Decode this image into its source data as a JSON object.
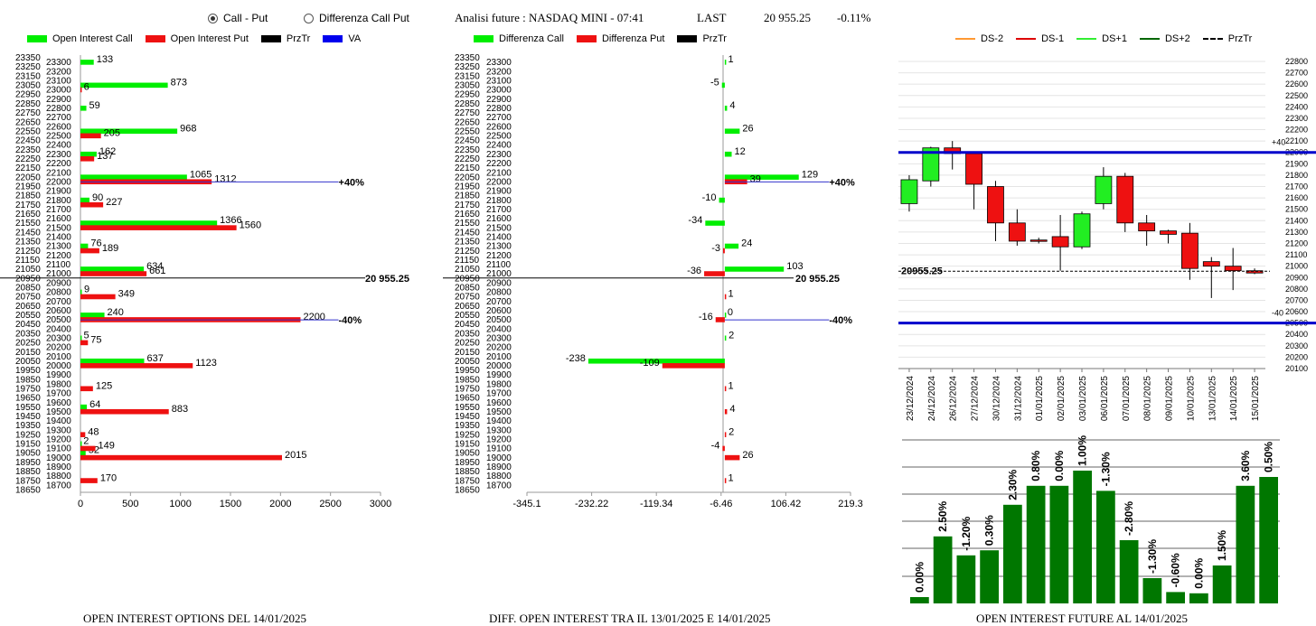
{
  "controls": {
    "radio_call_put": "Call - Put",
    "radio_diff": "Differenza Call Put",
    "title": "Analisi future : NASDAQ MINI - 07:41",
    "last_label": "LAST",
    "last_value": "20 955.25",
    "change": "-0.11%"
  },
  "legend_left": [
    {
      "label": "Open Interest Call",
      "color": "#00ee00"
    },
    {
      "label": "Open Interest Put",
      "color": "#ee1111"
    },
    {
      "label": "PrzTr",
      "color": "#000000"
    },
    {
      "label": "VA",
      "color": "#0000ee"
    }
  ],
  "legend_mid": [
    {
      "label": "Differenza Call",
      "color": "#00ee00"
    },
    {
      "label": "Differenza Put",
      "color": "#ee1111"
    },
    {
      "label": "PrzTr",
      "color": "#000000"
    }
  ],
  "legend_right": [
    {
      "label": "DS-2",
      "color": "#ff9933",
      "dash": false
    },
    {
      "label": "DS-1",
      "color": "#dd0000",
      "dash": false
    },
    {
      "label": "DS+1",
      "color": "#33ee33",
      "dash": false
    },
    {
      "label": "DS+2",
      "color": "#006600",
      "dash": false
    },
    {
      "label": "PrzTr",
      "color": "#000000",
      "dash": true
    }
  ],
  "captions": {
    "left": "OPEN INTEREST OPTIONS DEL 14/01/2025",
    "mid": "DIFF. OPEN INTEREST TRA IL 13/01/2025 E 14/01/2025",
    "right": "OPEN INTEREST FUTURE AL 14/01/2025"
  },
  "chart_data": [
    {
      "type": "bar",
      "orientation": "horizontal",
      "y_strikes_range": [
        18650,
        23350
      ],
      "y_strike_step": 50,
      "x_ticks": [
        0,
        500,
        1000,
        1500,
        2000,
        2500,
        3000
      ],
      "xlim": [
        0,
        3000
      ],
      "price_line": {
        "value": 20955.25,
        "label": "20 955.25"
      },
      "va_levels": [
        {
          "strike": 22000,
          "label": "+40%",
          "x": 2580
        },
        {
          "strike": 20500,
          "label": "-40%",
          "x": 2580
        }
      ],
      "series": [
        {
          "name": "Open Interest Call",
          "color": "#00ee00",
          "values": [
            {
              "strike": 23300,
              "v": 133
            },
            {
              "strike": 23050,
              "v": 873
            },
            {
              "strike": 22800,
              "v": 59
            },
            {
              "strike": 22550,
              "v": 968
            },
            {
              "strike": 22300,
              "v": 162
            },
            {
              "strike": 22050,
              "v": 1065
            },
            {
              "strike": 21800,
              "v": 90
            },
            {
              "strike": 21550,
              "v": 1366
            },
            {
              "strike": 21300,
              "v": 76
            },
            {
              "strike": 21050,
              "v": 634
            },
            {
              "strike": 20800,
              "v": 9
            },
            {
              "strike": 20550,
              "v": 240
            },
            {
              "strike": 20300,
              "v": 5
            },
            {
              "strike": 20050,
              "v": 637
            },
            {
              "strike": 19550,
              "v": 64
            },
            {
              "strike": 19150,
              "v": 2
            },
            {
              "strike": 19050,
              "v": 52
            }
          ]
        },
        {
          "name": "Open Interest Put",
          "color": "#ee1111",
          "values": [
            {
              "strike": 23000,
              "v": 6
            },
            {
              "strike": 22500,
              "v": 205
            },
            {
              "strike": 22250,
              "v": 137
            },
            {
              "strike": 22000,
              "v": 1312
            },
            {
              "strike": 21750,
              "v": 227
            },
            {
              "strike": 21500,
              "v": 1560
            },
            {
              "strike": 21250,
              "v": 189
            },
            {
              "strike": 21000,
              "v": 661
            },
            {
              "strike": 20750,
              "v": 349
            },
            {
              "strike": 20500,
              "v": 2200
            },
            {
              "strike": 20250,
              "v": 75
            },
            {
              "strike": 20000,
              "v": 1123
            },
            {
              "strike": 19750,
              "v": 125
            },
            {
              "strike": 19500,
              "v": 883
            },
            {
              "strike": 19250,
              "v": 48
            },
            {
              "strike": 19100,
              "v": 149
            },
            {
              "strike": 19000,
              "v": 2015
            },
            {
              "strike": 18750,
              "v": 170
            }
          ]
        }
      ]
    },
    {
      "type": "bar",
      "orientation": "horizontal",
      "y_strikes_range": [
        18650,
        23350
      ],
      "x_ticks": [
        -345.1,
        -232.22,
        -119.34,
        -6.46,
        106.42,
        219.3
      ],
      "xlim": [
        -345.1,
        219.3
      ],
      "price_line": {
        "value": 20955.25,
        "label": "20 955.25"
      },
      "va_levels": [
        {
          "strike": 22000,
          "label": "+40%",
          "x": 182
        },
        {
          "strike": 20500,
          "label": "-40%",
          "x": 182
        }
      ],
      "series": [
        {
          "name": "Differenza Call",
          "color": "#00ee00",
          "values": [
            {
              "strike": 23300,
              "v": 1
            },
            {
              "strike": 23050,
              "v": -5
            },
            {
              "strike": 22800,
              "v": 4
            },
            {
              "strike": 22550,
              "v": 26
            },
            {
              "strike": 22300,
              "v": 12
            },
            {
              "strike": 22050,
              "v": 129
            },
            {
              "strike": 21800,
              "v": -10
            },
            {
              "strike": 21550,
              "v": -34
            },
            {
              "strike": 21300,
              "v": 24
            },
            {
              "strike": 21050,
              "v": 103
            },
            {
              "strike": 20550,
              "v": 0
            },
            {
              "strike": 20300,
              "v": 2
            },
            {
              "strike": 20050,
              "v": -238
            }
          ]
        },
        {
          "name": "Differenza Put",
          "color": "#ee1111",
          "values": [
            {
              "strike": 22000,
              "v": 39
            },
            {
              "strike": 21250,
              "v": -3
            },
            {
              "strike": 21000,
              "v": -36
            },
            {
              "strike": 20750,
              "v": 1
            },
            {
              "strike": 20500,
              "v": -16
            },
            {
              "strike": 20000,
              "v": -109
            },
            {
              "strike": 19750,
              "v": 1
            },
            {
              "strike": 19500,
              "v": 4
            },
            {
              "strike": 19250,
              "v": 2
            },
            {
              "strike": 19100,
              "v": -4
            },
            {
              "strike": 19000,
              "v": 26
            },
            {
              "strike": 18750,
              "v": 1
            }
          ]
        }
      ]
    },
    {
      "type": "candlestick",
      "categories": [
        "23/12/2024",
        "24/12/2024",
        "26/12/2024",
        "27/12/2024",
        "30/12/2024",
        "31/12/2024",
        "01/01/2025",
        "02/01/2025",
        "03/01/2025",
        "06/01/2025",
        "07/01/2025",
        "08/01/2025",
        "09/01/2025",
        "10/01/2025",
        "13/01/2025",
        "14/01/2025",
        "15/01/2025"
      ],
      "ylim": [
        20100,
        22800
      ],
      "y_tick_step": 100,
      "levels": [
        {
          "value": 22000,
          "label": "+40",
          "color": "#0000cc"
        },
        {
          "value": 20500,
          "label": "-40",
          "color": "#0000cc"
        }
      ],
      "price_line": {
        "value": 20955.25,
        "label": "20955.25"
      },
      "candles": [
        {
          "o": 21550,
          "h": 21800,
          "l": 21480,
          "c": 21760
        },
        {
          "o": 21750,
          "h": 22050,
          "l": 21700,
          "c": 22040
        },
        {
          "o": 22040,
          "h": 22100,
          "l": 21850,
          "c": 21990
        },
        {
          "o": 21990,
          "h": 22010,
          "l": 21500,
          "c": 21720
        },
        {
          "o": 21700,
          "h": 21750,
          "l": 21220,
          "c": 21380
        },
        {
          "o": 21380,
          "h": 21500,
          "l": 21180,
          "c": 21220
        },
        {
          "o": 21230,
          "h": 21250,
          "l": 21200,
          "c": 21220
        },
        {
          "o": 21260,
          "h": 21450,
          "l": 20960,
          "c": 21170
        },
        {
          "o": 21170,
          "h": 21480,
          "l": 21150,
          "c": 21460
        },
        {
          "o": 21550,
          "h": 21870,
          "l": 21500,
          "c": 21790
        },
        {
          "o": 21790,
          "h": 21820,
          "l": 21300,
          "c": 21380
        },
        {
          "o": 21380,
          "h": 21450,
          "l": 21180,
          "c": 21310
        },
        {
          "o": 21310,
          "h": 21320,
          "l": 21200,
          "c": 21280
        },
        {
          "o": 21290,
          "h": 21380,
          "l": 20880,
          "c": 20980
        },
        {
          "o": 21040,
          "h": 21080,
          "l": 20720,
          "c": 21000
        },
        {
          "o": 21000,
          "h": 21160,
          "l": 20790,
          "c": 20960
        },
        {
          "o": 20960,
          "h": 20980,
          "l": 20930,
          "c": 20940
        }
      ]
    },
    {
      "type": "bar",
      "values": [
        0.5,
        5.3,
        3.8,
        4.2,
        7.8,
        9.3,
        9.3,
        10.5,
        8.9,
        5.0,
        2.0,
        0.9,
        0.8,
        3.0,
        9.3,
        10.0
      ],
      "labels": [
        "0.00%",
        "2.50%",
        "-1.20%",
        "0.30%",
        "2.30%",
        "0.80%",
        "0.00%",
        "1.00%",
        "-1.30%",
        "-2.80%",
        "-1.30%",
        "-0.60%",
        "0.00%",
        "1.50%",
        "3.60%",
        "0.50%"
      ],
      "color": "#007700"
    }
  ]
}
